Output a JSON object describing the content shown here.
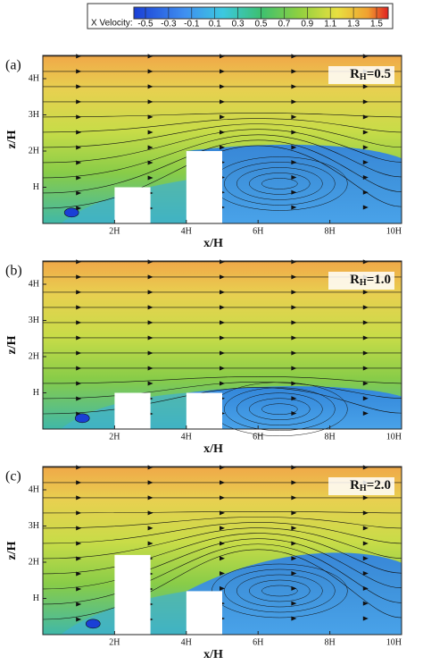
{
  "colorbar": {
    "title": "X Velocity:",
    "ticks": [
      "-0.5",
      "-0.3",
      "-0.1",
      "0.1",
      "0.3",
      "0.5",
      "0.7",
      "0.9",
      "1.1",
      "1.3",
      "1.5"
    ]
  },
  "panels": [
    {
      "label": "(a)",
      "annotation": {
        "symbol": "R",
        "subscript": "H",
        "value": "=0.5"
      },
      "xlabel": "x/H",
      "ylabel": "z/H",
      "xticks": [
        "2H",
        "4H",
        "6H",
        "8H",
        "10H"
      ],
      "yticks": [
        "H",
        "2H",
        "3H",
        "4H"
      ]
    },
    {
      "label": "(b)",
      "annotation": {
        "symbol": "R",
        "subscript": "H",
        "value": "=1.0"
      },
      "xlabel": "x/H",
      "ylabel": "z/H",
      "xticks": [
        "2H",
        "4H",
        "6H",
        "8H",
        "10H"
      ],
      "yticks": [
        "H",
        "2H",
        "3H",
        "4H"
      ]
    },
    {
      "label": "(c)",
      "annotation": {
        "symbol": "R",
        "subscript": "H",
        "value": "=2.0"
      },
      "xlabel": "x/H",
      "ylabel": "z/H",
      "xticks": [
        "2H",
        "4H",
        "6H",
        "8H",
        "10H"
      ],
      "yticks": [
        "H",
        "2H",
        "3H",
        "4H"
      ]
    }
  ]
}
